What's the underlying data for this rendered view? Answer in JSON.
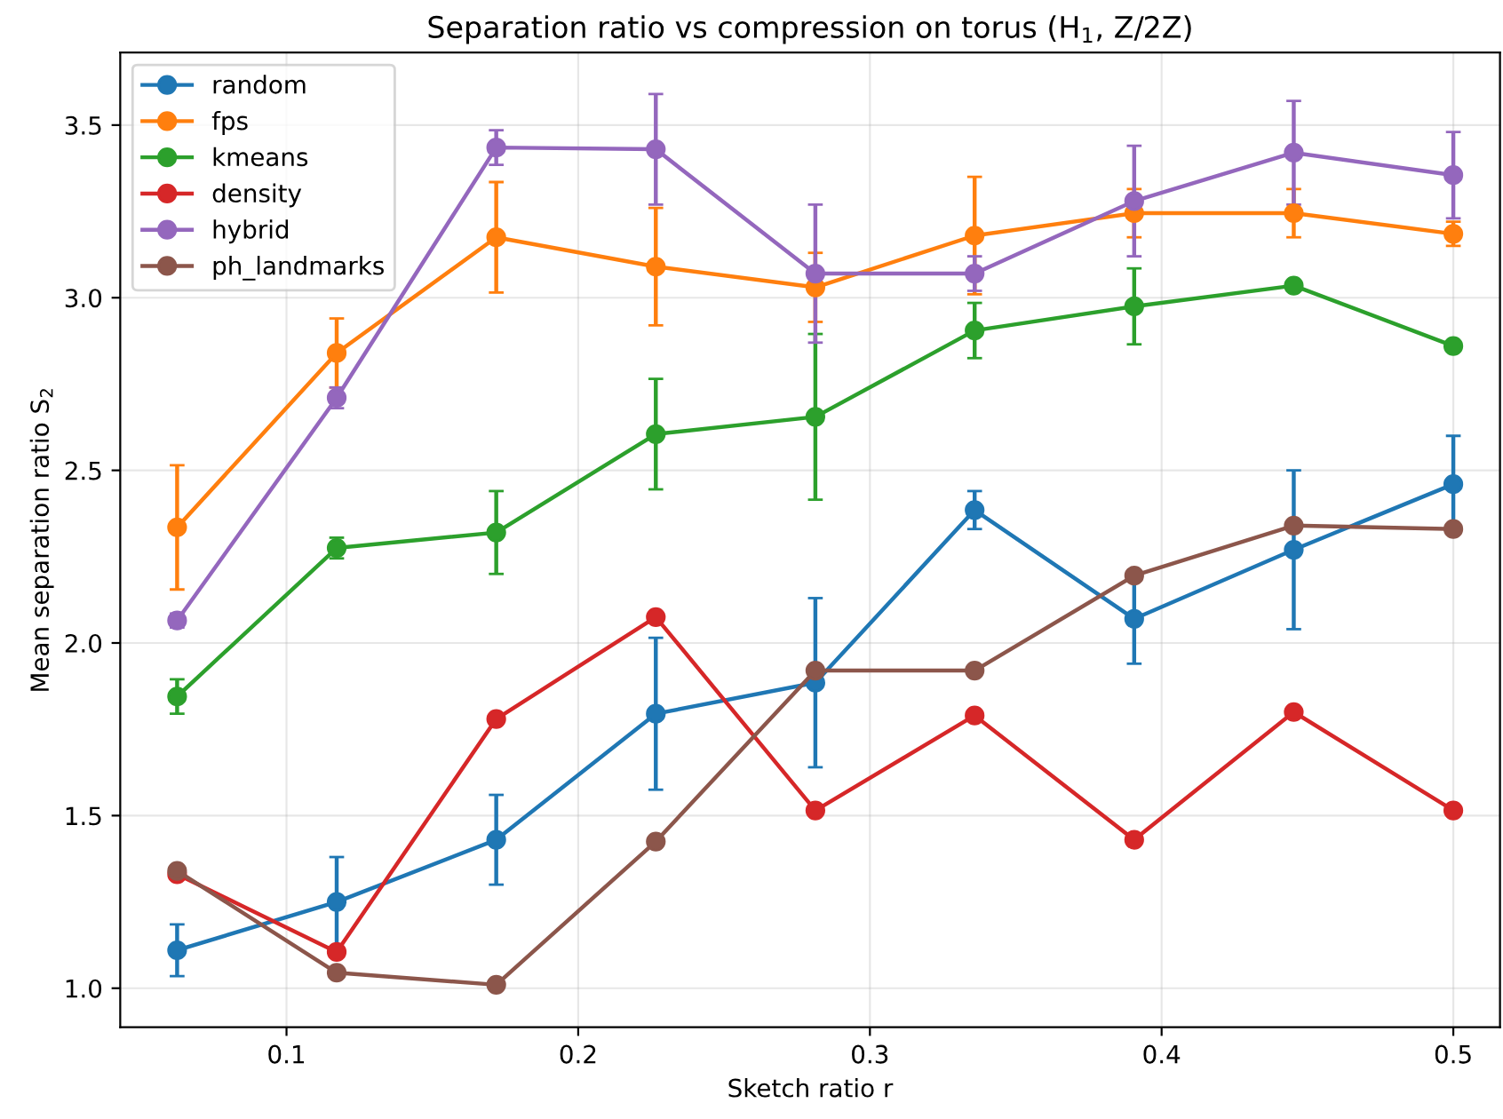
{
  "chart_data": {
    "type": "line",
    "title": "Separation ratio vs compression on torus (H$_{1}$, Z/2Z)",
    "xlabel": "Sketch ratio r",
    "ylabel": "Mean separation ratio S$_{2}$",
    "x": [
      0.0625,
      0.1172,
      0.1719,
      0.2266,
      0.2813,
      0.3359,
      0.3906,
      0.4453,
      0.5
    ],
    "series": [
      {
        "name": "random",
        "color": "#1f77b4",
        "values": [
          1.11,
          1.25,
          1.43,
          1.795,
          1.885,
          2.385,
          2.07,
          2.27,
          2.46
        ],
        "errors": [
          0.075,
          0.13,
          0.13,
          0.22,
          0.245,
          0.055,
          0.13,
          0.23,
          0.14
        ]
      },
      {
        "name": "fps",
        "color": "#ff7f0e",
        "values": [
          2.335,
          2.84,
          3.175,
          3.09,
          3.03,
          3.18,
          3.245,
          3.245,
          3.185
        ],
        "errors": [
          0.18,
          0.1,
          0.16,
          0.17,
          0.1,
          0.17,
          0.07,
          0.07,
          0.035
        ]
      },
      {
        "name": "kmeans",
        "color": "#2ca02c",
        "values": [
          1.845,
          2.275,
          2.32,
          2.605,
          2.655,
          2.905,
          2.975,
          3.035,
          2.86
        ],
        "errors": [
          0.05,
          0.03,
          0.12,
          0.16,
          0.24,
          0.08,
          0.11,
          null,
          null
        ]
      },
      {
        "name": "density",
        "color": "#d62728",
        "values": [
          1.33,
          1.105,
          1.78,
          2.075,
          1.515,
          1.79,
          1.43,
          1.8,
          1.515
        ],
        "errors": [
          null,
          null,
          null,
          null,
          null,
          null,
          null,
          null,
          null
        ]
      },
      {
        "name": "hybrid",
        "color": "#9467bd",
        "values": [
          2.065,
          2.71,
          3.435,
          3.43,
          3.07,
          3.07,
          3.28,
          3.42,
          3.355
        ],
        "errors": [
          0.02,
          0.03,
          0.05,
          0.16,
          0.2,
          0.05,
          0.16,
          0.15,
          0.125
        ]
      },
      {
        "name": "ph_landmarks",
        "color": "#8c564b",
        "values": [
          1.34,
          1.045,
          1.01,
          1.425,
          1.92,
          1.92,
          2.195,
          2.34,
          2.33
        ],
        "errors": [
          null,
          null,
          null,
          null,
          null,
          null,
          null,
          null,
          null
        ]
      }
    ],
    "xlim": [
      0.043,
      0.516
    ],
    "xticks": [
      0.1,
      0.2,
      0.3,
      0.4,
      0.5
    ],
    "ylim": [
      0.887,
      3.71
    ],
    "yticks": [
      {
        "value": 1,
        "label": "1.0"
      },
      1.5,
      {
        "value": 2,
        "label": "2.0"
      },
      2.5,
      {
        "value": 3,
        "label": "3.0"
      },
      3.5
    ],
    "grid": true,
    "legend": "top left",
    "marker": "circle",
    "line_style": "solid"
  }
}
